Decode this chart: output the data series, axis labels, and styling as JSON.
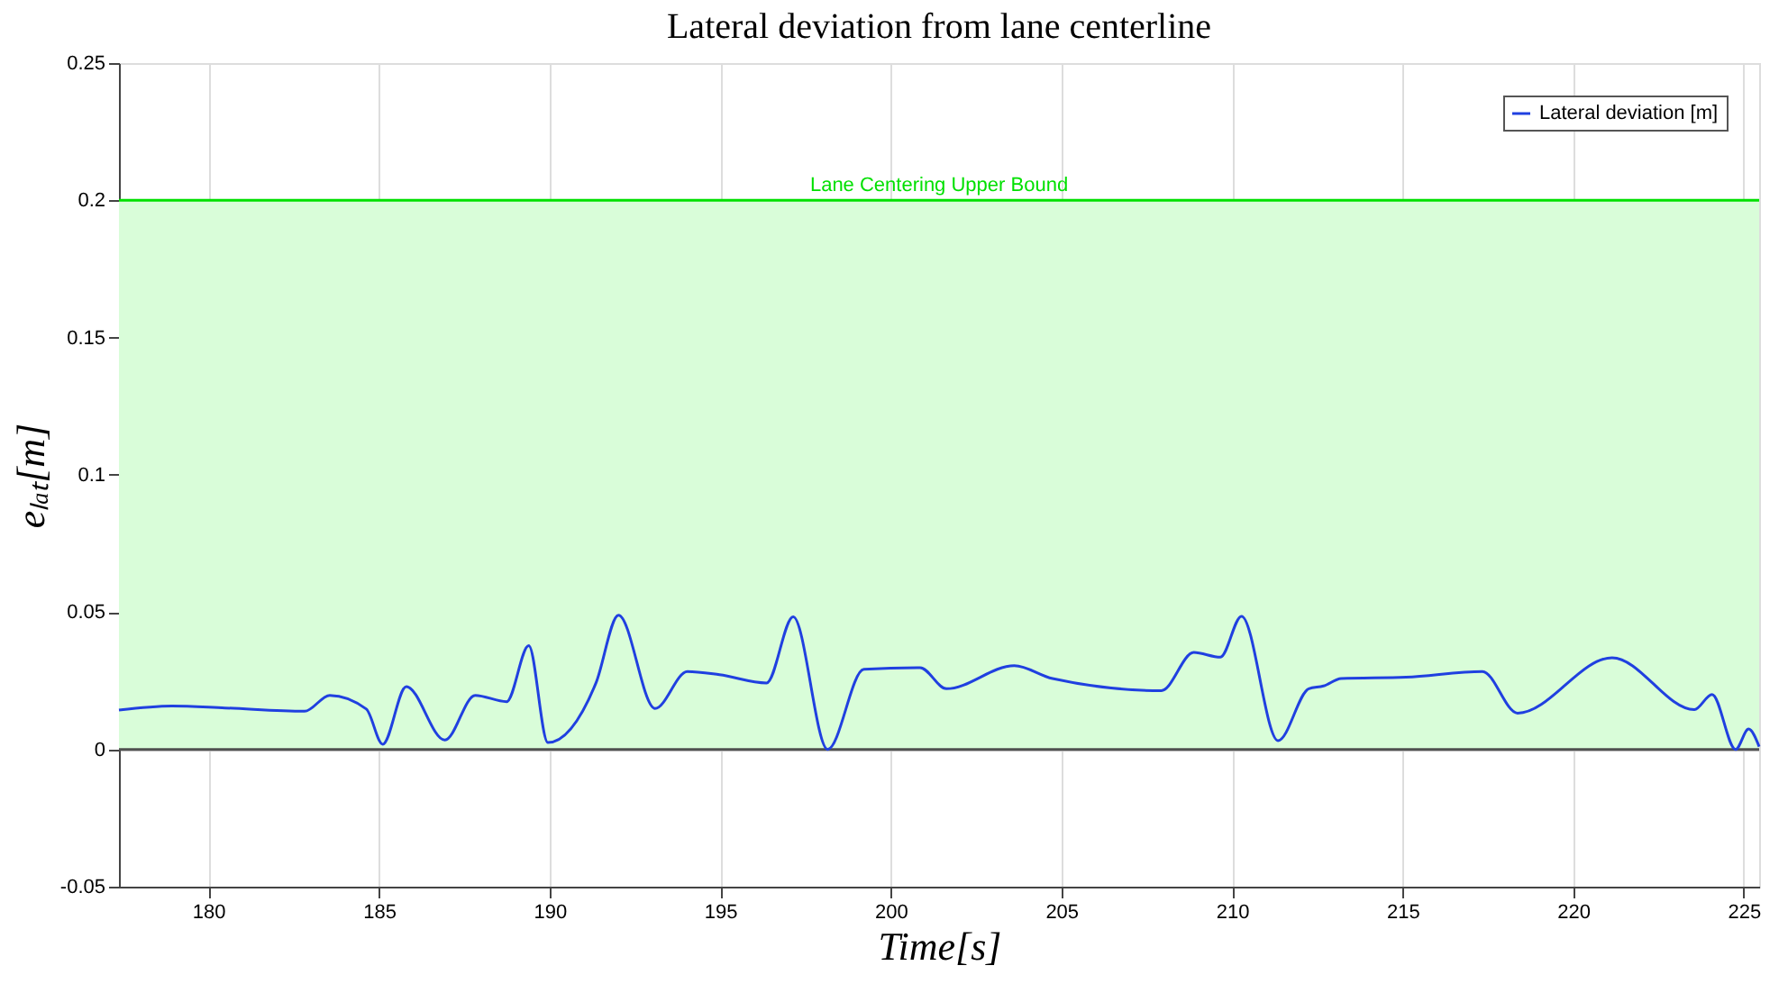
{
  "chart_data": {
    "type": "line",
    "title": "Lateral deviation from lane centerline",
    "xlabel": "Time[s]",
    "ylabel": "eₗₐₜ[m]",
    "xlim": [
      177.38,
      225.45
    ],
    "xticks": [
      180,
      185,
      190,
      195,
      200,
      205,
      210,
      215,
      220,
      225
    ],
    "ylim": [
      -0.05,
      0.25
    ],
    "yticks": [
      -0.05,
      0,
      0.05,
      0.1,
      0.15,
      0.2,
      0.25
    ],
    "grid": true,
    "legend": "top right",
    "line_style": "solid",
    "marker": "none",
    "bands": [
      {
        "axis": "y",
        "from": 0,
        "to": 0.2,
        "color": "#d9fdd9"
      }
    ],
    "ref_lines": [
      {
        "axis": "y",
        "value": 0.2,
        "label": "Lane Centering Upper Bound",
        "color": "#00e000"
      },
      {
        "axis": "y",
        "value": 0,
        "color": "#505050"
      }
    ],
    "series": [
      {
        "name": "Lateral deviation [m]",
        "color": "#2040e0",
        "x": [
          177.38,
          178.93,
          180.49,
          182.82,
          183.56,
          184.63,
          185.11,
          185.8,
          186.93,
          187.82,
          188.74,
          189.39,
          189.95,
          191.36,
          192.02,
          193.09,
          194.04,
          194.98,
          196.36,
          197.14,
          198.15,
          199.21,
          200.86,
          201.63,
          203.62,
          204.74,
          207.93,
          208.88,
          209.66,
          210.28,
          211.35,
          212.25,
          212.68,
          213.2,
          215.1,
          217.34,
          218.37,
          221.14,
          223.55,
          224.07,
          224.76,
          225.14,
          225.45
        ],
        "values": [
          0.0143,
          0.0158,
          0.0151,
          0.0139,
          0.0197,
          0.0147,
          0.0019,
          0.0229,
          0.0034,
          0.0197,
          0.0174,
          0.0378,
          0.0025,
          0.0242,
          0.0489,
          0.0149,
          0.0284,
          0.0272,
          0.0242,
          0.0483,
          0.0,
          0.0292,
          0.0298,
          0.0221,
          0.0305,
          0.0258,
          0.0214,
          0.0353,
          0.0336,
          0.0485,
          0.0032,
          0.0221,
          0.0231,
          0.0258,
          0.0263,
          0.0284,
          0.0132,
          0.0334,
          0.0145,
          0.02,
          0.0,
          0.0074,
          0.001
        ]
      }
    ]
  }
}
